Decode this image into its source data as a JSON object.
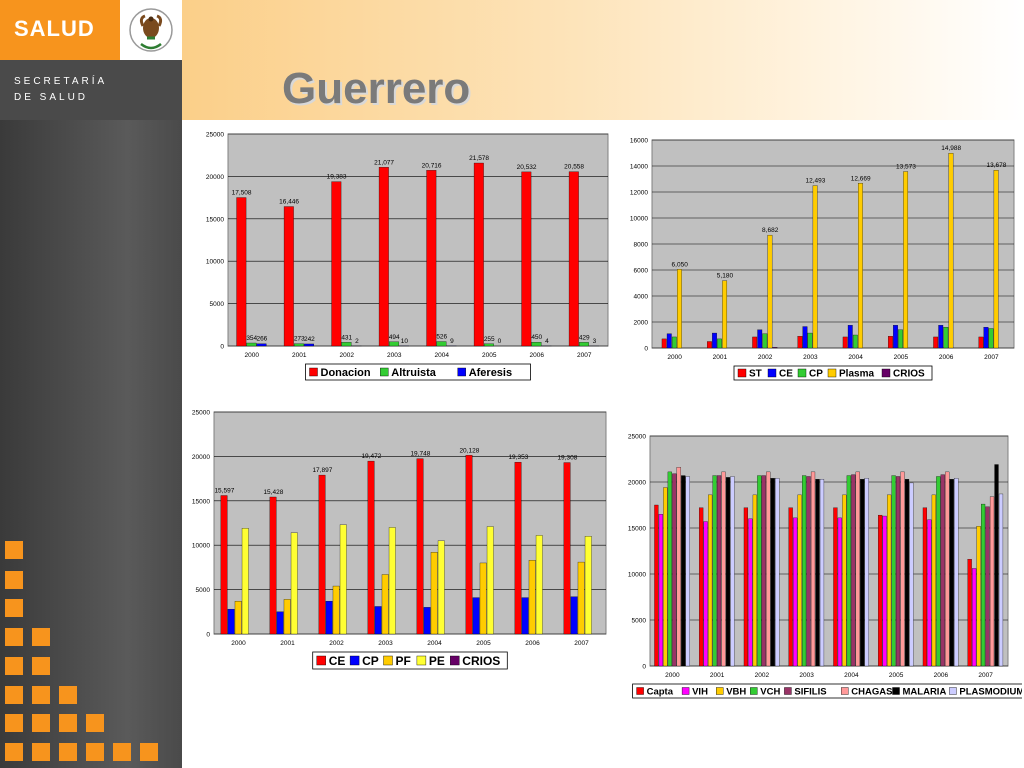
{
  "header": {
    "brand": "SALUD",
    "subbrand_line1": "SECRETARÍA",
    "subbrand_line2": "DE SALUD",
    "title": "Guerrero"
  },
  "colors": {
    "orange": "#f7941d",
    "red": "#ff0000",
    "green": "#33cc33",
    "blue": "#0000ff",
    "yellow": "#ffcc00",
    "lightyellow": "#ffff33",
    "purple": "#660066",
    "magenta": "#ff00ff",
    "darkred": "#993366",
    "pink": "#ff9999",
    "black": "#000000",
    "lavender": "#ccccff",
    "plot_bg": "#c0c0c0"
  },
  "chart_data": [
    {
      "type": "bar",
      "categories": [
        "2000",
        "2001",
        "2002",
        "2003",
        "2004",
        "2005",
        "2006",
        "2007"
      ],
      "ylim": [
        0,
        25000
      ],
      "yticks": [
        0,
        5000,
        10000,
        15000,
        20000,
        25000
      ],
      "legend_position": "bottom",
      "series": [
        {
          "name": "Donacion",
          "color": "#ff0000",
          "values": [
            17508,
            16446,
            19383,
            21077,
            20716,
            21578,
            20532,
            20558
          ],
          "labels": [
            "17,508",
            "16,446",
            "19,383",
            "21,077",
            "20,716",
            "21,578",
            "20,532",
            "20,558"
          ]
        },
        {
          "name": "Altruista",
          "color": "#33cc33",
          "values": [
            354,
            273,
            431,
            494,
            526,
            255,
            450,
            429
          ],
          "labels": [
            "354",
            "273",
            "431",
            "494",
            "526",
            "255",
            "450",
            "429"
          ]
        },
        {
          "name": "Aferesis",
          "color": "#0000ff",
          "values": [
            266,
            242,
            2,
            10,
            9,
            0,
            4,
            3
          ],
          "labels": [
            "266",
            "242",
            "2",
            "10",
            "9",
            "0",
            "4",
            "3"
          ]
        }
      ]
    },
    {
      "type": "bar",
      "categories": [
        "2000",
        "2001",
        "2002",
        "2003",
        "2004",
        "2005",
        "2006",
        "2007"
      ],
      "ylim": [
        0,
        16000
      ],
      "yticks": [
        0,
        2000,
        4000,
        6000,
        8000,
        10000,
        12000,
        14000,
        16000
      ],
      "legend_position": "bottom",
      "series": [
        {
          "name": "ST",
          "color": "#ff0000",
          "values": [
            700,
            500,
            850,
            900,
            850,
            900,
            850,
            850
          ]
        },
        {
          "name": "CE",
          "color": "#0000ff",
          "values": [
            1100,
            1150,
            1400,
            1650,
            1750,
            1750,
            1750,
            1600
          ]
        },
        {
          "name": "CP",
          "color": "#33cc33",
          "values": [
            850,
            700,
            1100,
            1150,
            1000,
            1400,
            1600,
            1500
          ]
        },
        {
          "name": "Plasma",
          "color": "#ffcc00",
          "values": [
            6050,
            5180,
            8682,
            12493,
            12669,
            13573,
            14988,
            13678
          ],
          "labels": [
            "6,050",
            "5,180",
            "8,682",
            "12,493",
            "12,669",
            "13,573",
            "14,988",
            "13,678"
          ]
        },
        {
          "name": "CRIOS",
          "color": "#660066",
          "values": [
            0,
            0,
            50,
            0,
            0,
            0,
            0,
            0
          ]
        }
      ]
    },
    {
      "type": "bar",
      "categories": [
        "2000",
        "2001",
        "2002",
        "2003",
        "2004",
        "2005",
        "2006",
        "2007"
      ],
      "ylim": [
        0,
        25000
      ],
      "yticks": [
        0,
        5000,
        10000,
        15000,
        20000,
        25000
      ],
      "legend_position": "bottom",
      "series": [
        {
          "name": "CE",
          "color": "#ff0000",
          "values": [
            15597,
            15428,
            17897,
            19472,
            19748,
            20128,
            19353,
            19308
          ],
          "labels": [
            "15,597",
            "15,428",
            "17,897",
            "19,472",
            "19,748",
            "20,128",
            "19,353",
            "19,308"
          ]
        },
        {
          "name": "CP",
          "color": "#0000ff",
          "values": [
            2800,
            2500,
            3700,
            3100,
            3000,
            4100,
            4100,
            4200
          ]
        },
        {
          "name": "PF",
          "color": "#ffcc00",
          "values": [
            3700,
            3900,
            5400,
            6700,
            9200,
            8000,
            8300,
            8100
          ]
        },
        {
          "name": "PE",
          "color": "#ffff33",
          "values": [
            11900,
            11400,
            12300,
            12000,
            10500,
            12100,
            11100,
            11000
          ]
        },
        {
          "name": "CRIOS",
          "color": "#660066",
          "values": [
            0,
            0,
            0,
            0,
            0,
            0,
            0,
            0
          ]
        }
      ]
    },
    {
      "type": "bar",
      "categories": [
        "2000",
        "2001",
        "2002",
        "2003",
        "2004",
        "2005",
        "2006",
        "2007"
      ],
      "ylim": [
        0,
        25000
      ],
      "yticks": [
        0,
        5000,
        10000,
        15000,
        20000,
        25000
      ],
      "legend_position": "bottom",
      "series": [
        {
          "name": "Capta",
          "color": "#ff0000",
          "values": [
            17500,
            17200,
            17200,
            17200,
            17200,
            16400,
            17200,
            11600
          ]
        },
        {
          "name": "VIH",
          "color": "#ff00ff",
          "values": [
            16500,
            15700,
            16000,
            16100,
            16100,
            16300,
            15900,
            10600
          ]
        },
        {
          "name": "VBH",
          "color": "#ffcc00",
          "values": [
            19400,
            18600,
            18600,
            18600,
            18600,
            18600,
            18600,
            15200
          ]
        },
        {
          "name": "VCH",
          "color": "#33cc33",
          "values": [
            21100,
            20700,
            20700,
            20700,
            20700,
            20700,
            20600,
            17600
          ]
        },
        {
          "name": "SIFILIS",
          "color": "#993366",
          "values": [
            20900,
            20700,
            20700,
            20600,
            20800,
            20600,
            20800,
            17300
          ]
        },
        {
          "name": "CHAGAS",
          "color": "#ff9999",
          "values": [
            21600,
            21100,
            21100,
            21100,
            21100,
            21100,
            21100,
            18400
          ]
        },
        {
          "name": "MALARIA",
          "color": "#000000",
          "values": [
            20700,
            20500,
            20400,
            20300,
            20300,
            20300,
            20300,
            21900
          ]
        },
        {
          "name": "PLASMODIUM",
          "color": "#ccccff",
          "values": [
            20600,
            20600,
            20400,
            20300,
            20400,
            19900,
            20400,
            18700
          ]
        }
      ]
    }
  ]
}
